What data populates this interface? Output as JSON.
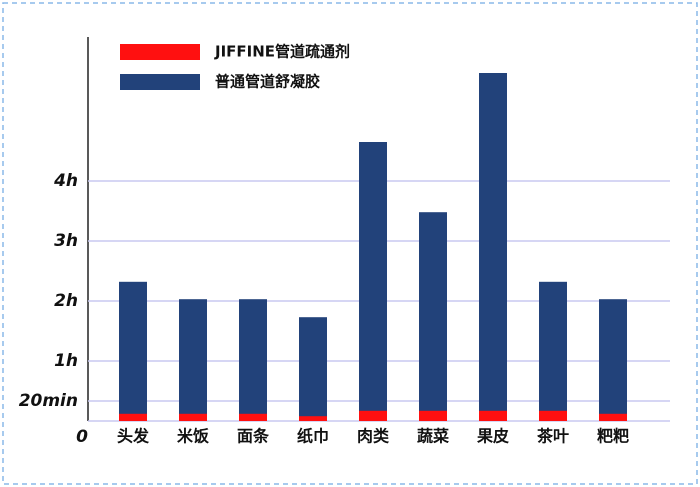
{
  "chart_data": {
    "type": "bar",
    "categories": [
      "头发",
      "米饭",
      "面条",
      "纸巾",
      "肉类",
      "蔬菜",
      "果皮",
      "茶叶",
      "粑粑"
    ],
    "series": [
      {
        "name": "普通管道舒凝胶",
        "color": "#22427a",
        "values": [
          2.32,
          2.03,
          2.03,
          1.73,
          4.65,
          3.48,
          5.8,
          2.32,
          2.03
        ]
      },
      {
        "name": "JIFFINE管道疏通剂",
        "color": "#ff1010",
        "values": [
          0.12,
          0.12,
          0.12,
          0.08,
          0.17,
          0.17,
          0.17,
          0.17,
          0.12
        ]
      }
    ],
    "ylim": [
      0,
      6.4
    ],
    "yticks": [
      0,
      {
        "value": 0.3333,
        "label": "20min"
      },
      {
        "value": 1,
        "label": "1h"
      },
      {
        "value": 2,
        "label": "2h"
      },
      {
        "value": 3,
        "label": "3h"
      },
      {
        "value": 4,
        "label": "4h"
      }
    ],
    "grid": true
  }
}
